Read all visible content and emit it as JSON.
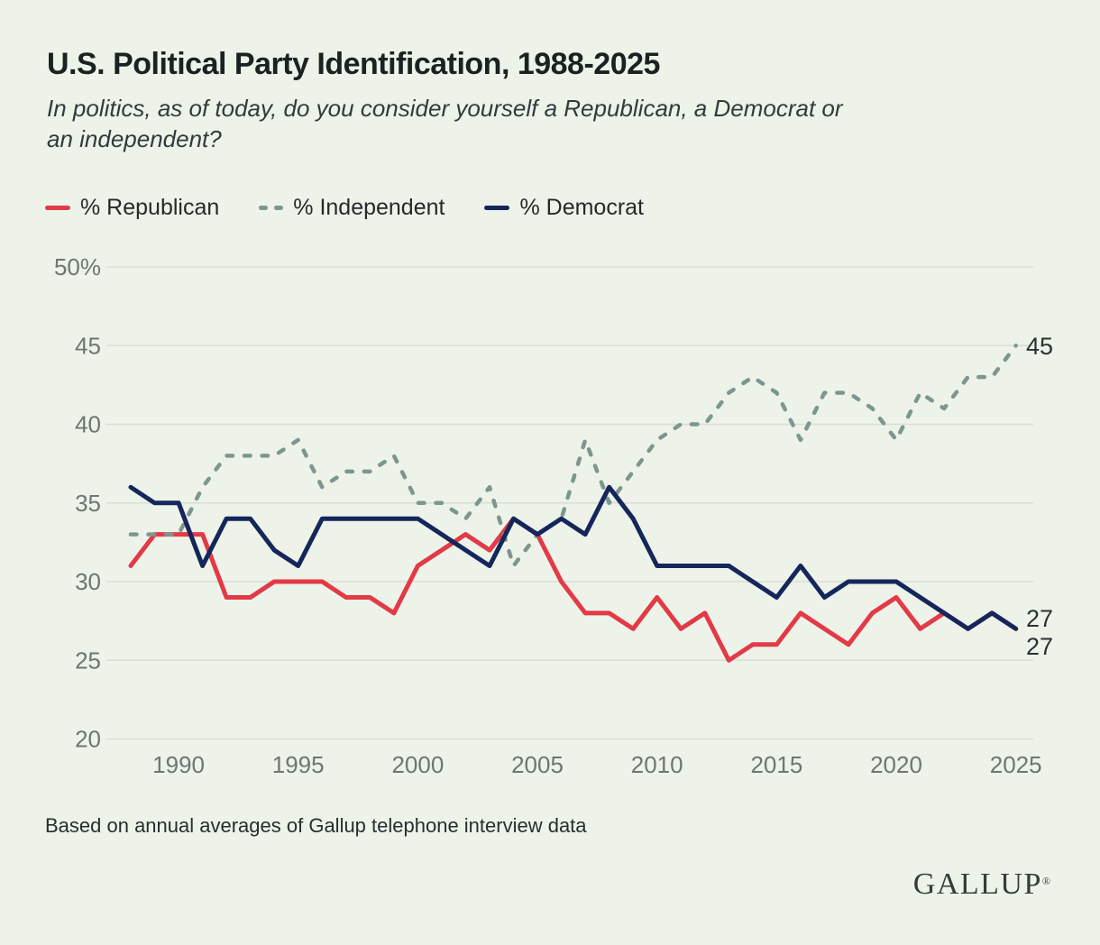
{
  "header": {
    "title": "U.S. Political Party Identification, 1988-2025",
    "subtitle_lines": [
      "In politics, as of today, do you consider yourself a Republican, a Democrat or",
      "an independent?"
    ]
  },
  "legend": {
    "items": [
      {
        "label": "% Republican",
        "color": "#e23a47",
        "dash": false
      },
      {
        "label": "% Independent",
        "color": "#7d968f",
        "dash": true
      },
      {
        "label": "% Democrat",
        "color": "#15265a",
        "dash": false
      }
    ]
  },
  "chart_data": {
    "type": "line",
    "title": "U.S. Political Party Identification, 1988-2025",
    "x_start": 1988,
    "x_end": 2025,
    "x": [
      1988,
      1989,
      1990,
      1991,
      1992,
      1993,
      1994,
      1995,
      1996,
      1997,
      1998,
      1999,
      2000,
      2001,
      2002,
      2003,
      2004,
      2005,
      2006,
      2007,
      2008,
      2009,
      2010,
      2011,
      2012,
      2013,
      2014,
      2015,
      2016,
      2017,
      2018,
      2019,
      2020,
      2021,
      2022,
      2023,
      2024,
      2025
    ],
    "series": [
      {
        "name": "% Republican",
        "color": "#e23a47",
        "dash": false,
        "values": [
          31,
          33,
          33,
          33,
          29,
          29,
          30,
          30,
          30,
          29,
          29,
          28,
          31,
          32,
          33,
          32,
          34,
          33,
          30,
          28,
          28,
          27,
          29,
          27,
          28,
          25,
          26,
          26,
          28,
          27,
          26,
          28,
          29,
          27,
          28,
          27,
          28,
          27
        ]
      },
      {
        "name": "% Independent",
        "color": "#7d968f",
        "dash": true,
        "values": [
          33,
          33,
          33,
          36,
          38,
          38,
          38,
          39,
          36,
          37,
          37,
          38,
          35,
          35,
          34,
          36,
          31,
          33,
          34,
          39,
          35,
          37,
          39,
          40,
          40,
          42,
          43,
          42,
          39,
          42,
          42,
          41,
          39,
          42,
          41,
          43,
          43,
          45
        ]
      },
      {
        "name": "% Democrat",
        "color": "#15265a",
        "dash": false,
        "values": [
          36,
          35,
          35,
          31,
          34,
          34,
          32,
          31,
          34,
          34,
          34,
          34,
          34,
          33,
          32,
          31,
          34,
          33,
          34,
          33,
          36,
          34,
          31,
          31,
          31,
          31,
          30,
          29,
          31,
          29,
          30,
          30,
          30,
          29,
          28,
          27,
          28,
          27
        ]
      }
    ],
    "ylim": [
      20,
      50
    ],
    "grid": true,
    "legend_position": "top",
    "yticks": [
      {
        "value": 50,
        "label": "50%"
      },
      {
        "value": 45,
        "label": "45"
      },
      {
        "value": 40,
        "label": "40"
      },
      {
        "value": 35,
        "label": "35"
      },
      {
        "value": 30,
        "label": "30"
      },
      {
        "value": 25,
        "label": "25"
      },
      {
        "value": 20,
        "label": "20"
      }
    ],
    "xticks": [
      {
        "value": 1990,
        "label": "1990"
      },
      {
        "value": 1995,
        "label": "1995"
      },
      {
        "value": 2000,
        "label": "2000"
      },
      {
        "value": 2005,
        "label": "2005"
      },
      {
        "value": 2010,
        "label": "2010"
      },
      {
        "value": 2015,
        "label": "2015"
      },
      {
        "value": 2020,
        "label": "2020"
      },
      {
        "value": 2025,
        "label": "2025"
      }
    ],
    "end_labels": [
      {
        "text": "45",
        "series": "% Independent"
      },
      {
        "text": "27",
        "series": "% Democrat"
      },
      {
        "text": "27",
        "series": "% Republican"
      }
    ],
    "colors": {
      "grid": "#d9ded5",
      "tick_text": "#6e7573",
      "end_label_text": "#2b3133"
    }
  },
  "footer": {
    "note": "Based on annual averages of Gallup telephone interview data",
    "logo_text": "GALLUP",
    "registered_mark": "®"
  }
}
